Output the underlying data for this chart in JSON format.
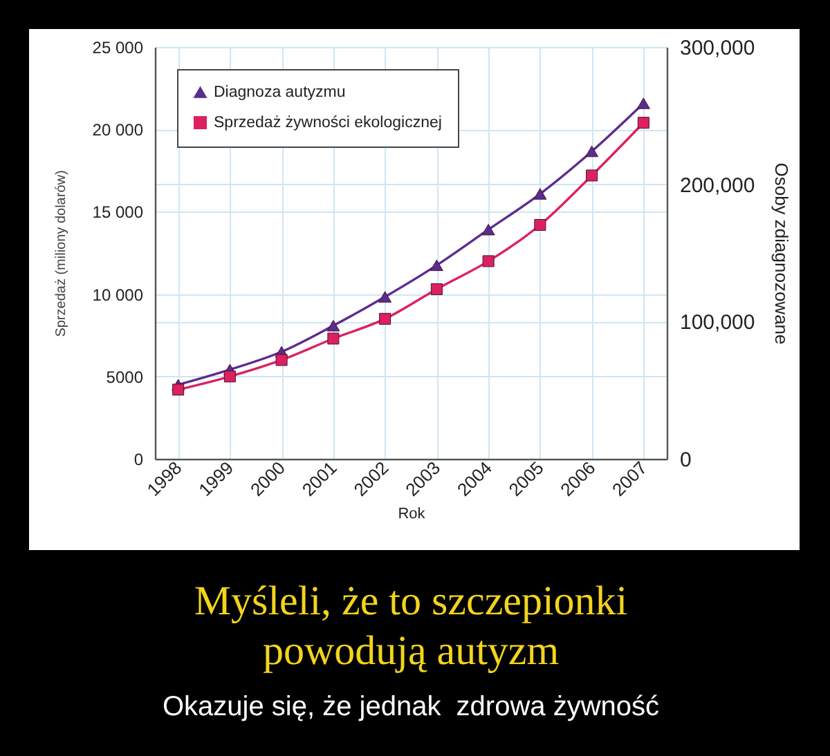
{
  "chart_data": {
    "type": "line",
    "title": "Myśleli, że to szczepionki powodują autyzm",
    "subtitle": "Okazuje się, że jednak  zdrowa żywność",
    "xlabel": "Rok",
    "ylabel": "Sprzedaż (miliony dolarów)",
    "y2label": "Osoby zdiagnozowane",
    "categories": [
      "1998",
      "1999",
      "2000",
      "2001",
      "2002",
      "2003",
      "2004",
      "2005",
      "2006",
      "2007"
    ],
    "series": [
      {
        "name": "Diagnoza autyzmu",
        "color": "#5b2c8f",
        "marker": "triangle",
        "axis": "y2",
        "values": [
          54000,
          65000,
          78000,
          97000,
          118000,
          141000,
          167000,
          193000,
          224000,
          259000
        ]
      },
      {
        "name": "Sprzedaż żywności ekologicznej",
        "color": "#dc2160",
        "marker": "square",
        "values": [
          4200,
          5000,
          6000,
          7300,
          8500,
          10300,
          12000,
          14200,
          17200,
          20400
        ]
      }
    ],
    "ylim": [
      0,
      25000
    ],
    "yticks": [
      0,
      5000,
      {
        "value": 10000,
        "label": "10 000"
      },
      {
        "value": 15000,
        "label": "15 000"
      },
      {
        "value": 20000,
        "label": "20 000"
      },
      {
        "value": 25000,
        "label": "25 000"
      }
    ],
    "y2lim": [
      0,
      300000
    ],
    "y2ticks": [
      0,
      {
        "value": 100000,
        "label": "100,000"
      },
      {
        "value": 200000,
        "label": "200,000"
      },
      {
        "value": 300000,
        "label": "300,000"
      }
    ],
    "grid": true,
    "legend": "top left"
  }
}
